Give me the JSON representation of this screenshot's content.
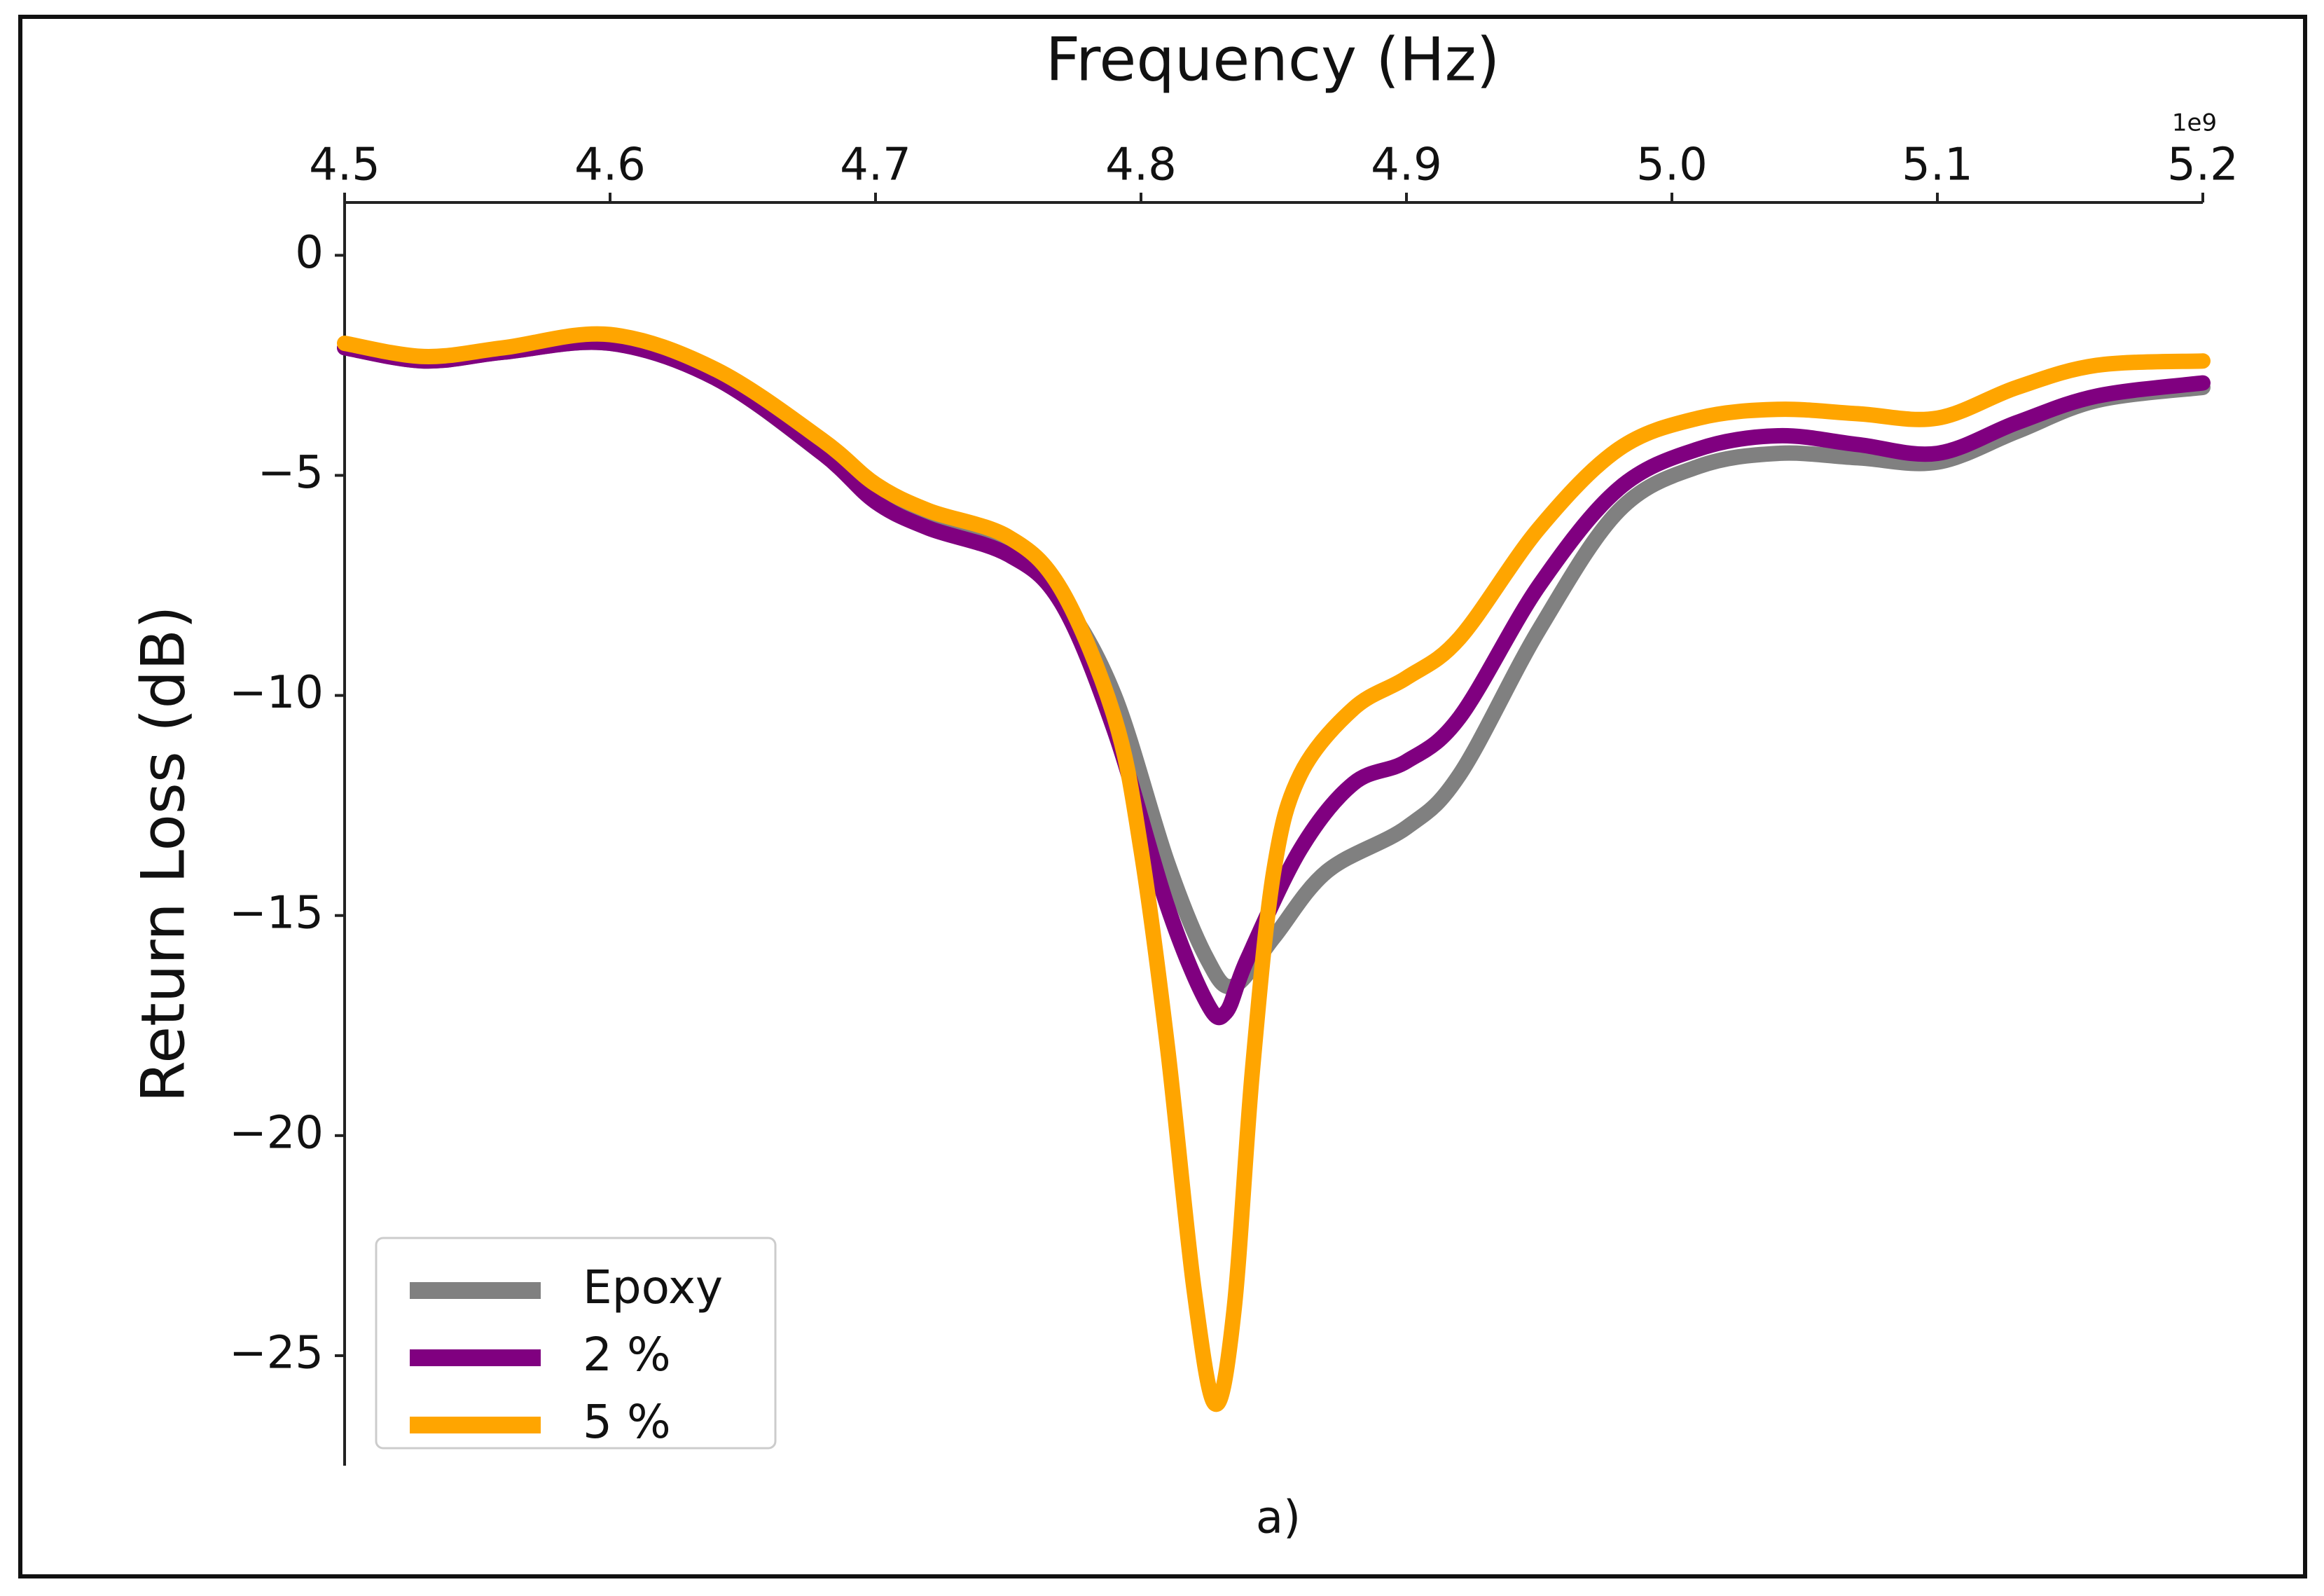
{
  "chart_data": {
    "type": "line",
    "title": "",
    "xlabel": "Frequency (Hz)",
    "ylabel": "Return Loss (dB)",
    "x_offset_label": "1e9",
    "caption": "a)",
    "xlim": [
      4.5,
      5.2
    ],
    "ylim": [
      -27.5,
      1.2
    ],
    "x_ticks": [
      4.5,
      4.6,
      4.7,
      4.8,
      4.9,
      5.0,
      5.1,
      5.2
    ],
    "x_tick_labels": [
      "4.5",
      "4.6",
      "4.7",
      "4.8",
      "4.9",
      "5.0",
      "5.1",
      "5.2"
    ],
    "y_ticks": [
      0,
      -5,
      -10,
      -15,
      -20,
      -25
    ],
    "y_tick_labels": [
      "0",
      "−5",
      "−10",
      "−15",
      "−20",
      "−25"
    ],
    "x_axis_position": "top",
    "grid": false,
    "legend_position": "lower-left",
    "series": [
      {
        "name": "Epoxy",
        "color": "#808080",
        "x": [
          4.5,
          4.53,
          4.56,
          4.6,
          4.64,
          4.68,
          4.7,
          4.72,
          4.75,
          4.77,
          4.79,
          4.81,
          4.825,
          4.835,
          4.85,
          4.87,
          4.9,
          4.92,
          4.95,
          4.98,
          5.01,
          5.04,
          5.07,
          5.1,
          5.13,
          5.16,
          5.2
        ],
        "y": [
          -2.1,
          -2.4,
          -2.2,
          -2.0,
          -2.8,
          -4.5,
          -5.5,
          -6.1,
          -6.7,
          -7.8,
          -10.0,
          -13.8,
          -16.0,
          -16.6,
          -15.5,
          -14.0,
          -13.0,
          -11.8,
          -8.5,
          -5.8,
          -4.8,
          -4.5,
          -4.6,
          -4.7,
          -4.0,
          -3.3,
          -3.0
        ]
      },
      {
        "name": "2 %",
        "color": "#800080",
        "x": [
          4.5,
          4.53,
          4.56,
          4.6,
          4.64,
          4.68,
          4.7,
          4.72,
          4.75,
          4.77,
          4.79,
          4.81,
          4.825,
          4.832,
          4.84,
          4.86,
          4.88,
          4.9,
          4.92,
          4.95,
          4.98,
          5.01,
          5.04,
          5.07,
          5.1,
          5.13,
          5.16,
          5.2
        ],
        "y": [
          -2.1,
          -2.4,
          -2.2,
          -2.0,
          -2.8,
          -4.5,
          -5.6,
          -6.2,
          -6.8,
          -7.9,
          -10.8,
          -14.8,
          -17.0,
          -17.2,
          -16.0,
          -13.5,
          -12.0,
          -11.5,
          -10.5,
          -7.5,
          -5.3,
          -4.4,
          -4.1,
          -4.3,
          -4.5,
          -3.8,
          -3.2,
          -2.9
        ]
      },
      {
        "name": "5 %",
        "color": "#FFA500",
        "x": [
          4.5,
          4.53,
          4.56,
          4.6,
          4.64,
          4.68,
          4.7,
          4.72,
          4.75,
          4.77,
          4.79,
          4.8,
          4.81,
          4.82,
          4.828,
          4.835,
          4.842,
          4.85,
          4.86,
          4.88,
          4.9,
          4.92,
          4.95,
          4.98,
          5.01,
          5.04,
          5.07,
          5.1,
          5.13,
          5.16,
          5.2
        ],
        "y": [
          -2.0,
          -2.3,
          -2.1,
          -1.8,
          -2.6,
          -4.2,
          -5.2,
          -5.8,
          -6.4,
          -7.6,
          -10.5,
          -13.5,
          -18.0,
          -23.5,
          -26.1,
          -24.0,
          -18.5,
          -14.0,
          -11.8,
          -10.3,
          -9.6,
          -8.7,
          -6.2,
          -4.4,
          -3.7,
          -3.5,
          -3.6,
          -3.7,
          -3.0,
          -2.5,
          -2.4
        ]
      }
    ]
  }
}
